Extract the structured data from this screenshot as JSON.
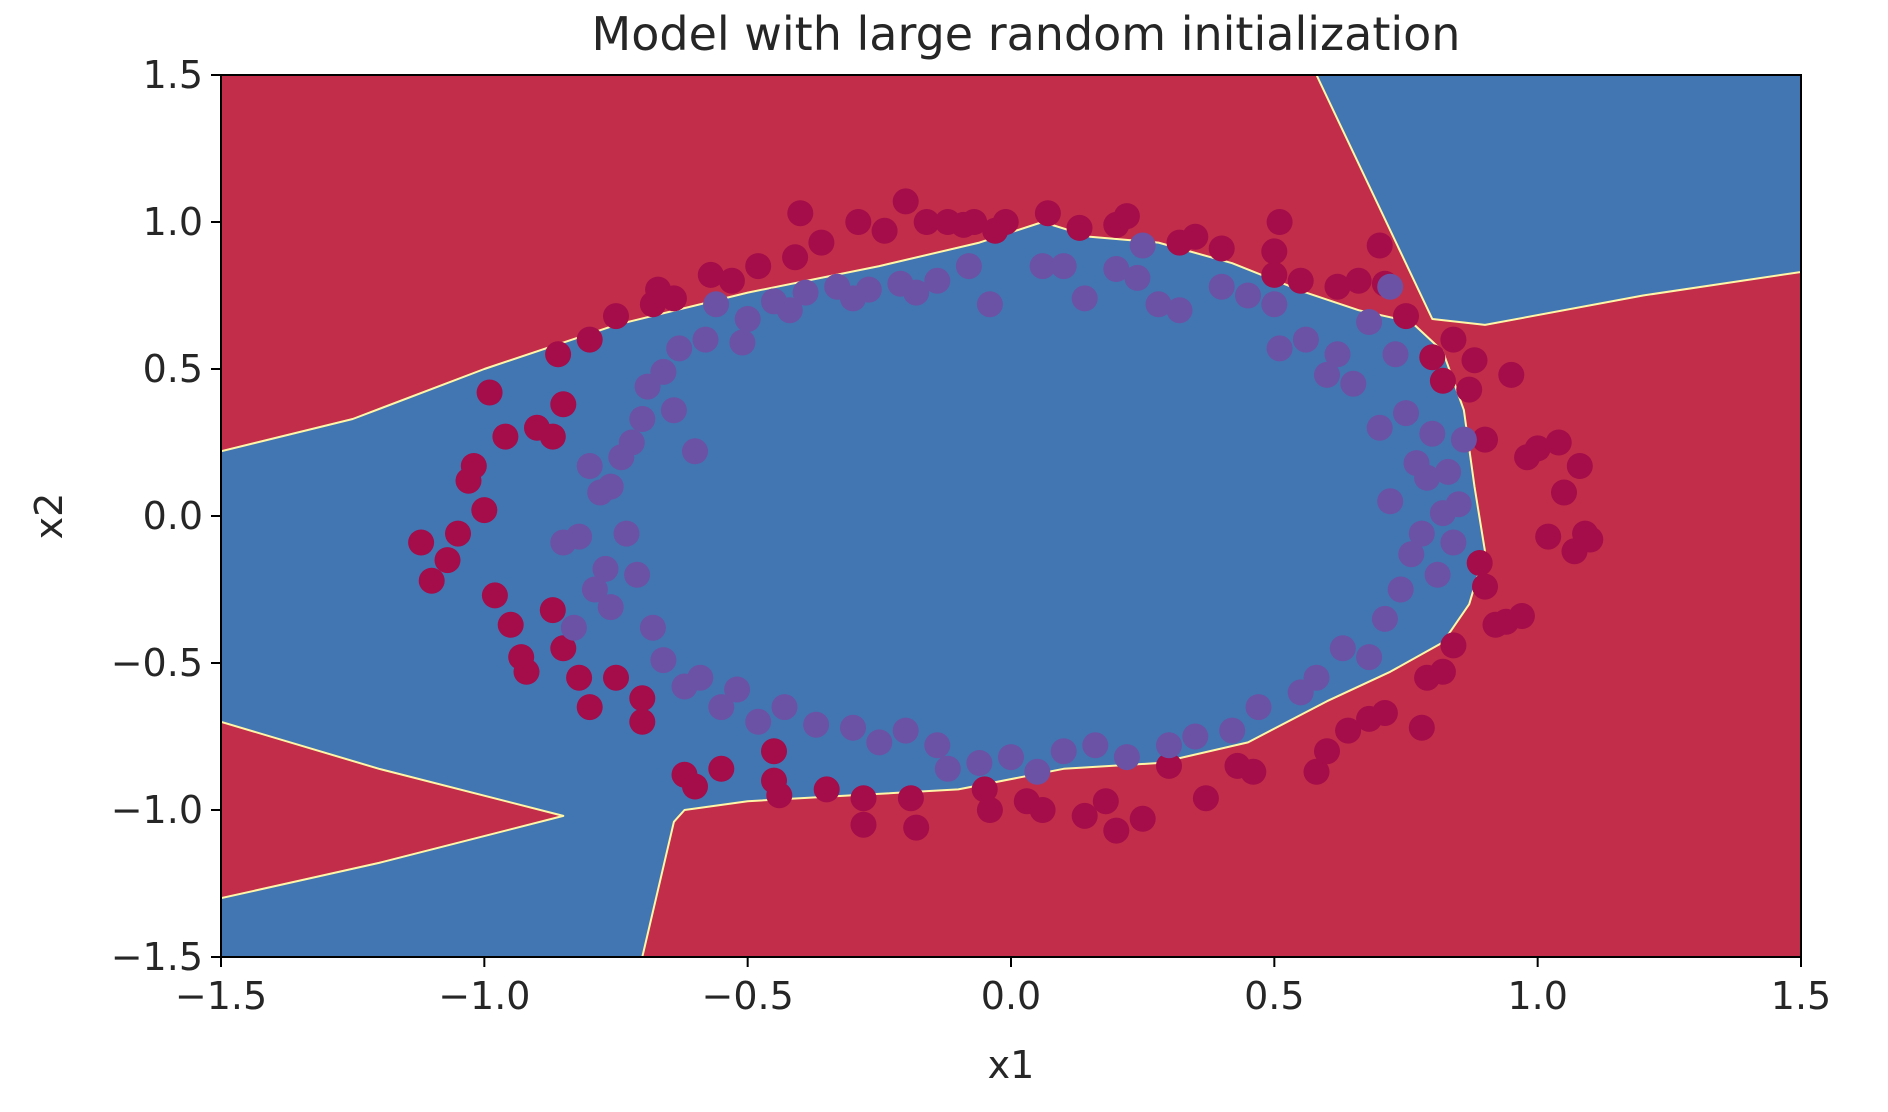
{
  "chart_data": {
    "type": "scatter",
    "title": "Model with large random initialization",
    "xlabel": "x1",
    "ylabel": "x2",
    "xlim": [
      -1.5,
      1.5
    ],
    "ylim": [
      -1.5,
      1.5
    ],
    "xticks": [
      -1.5,
      -1.0,
      -0.5,
      0.0,
      0.5,
      1.0,
      1.5
    ],
    "yticks": [
      -1.5,
      -1.0,
      -0.5,
      0.0,
      0.5,
      1.0,
      1.5
    ],
    "xtick_labels": [
      "−1.5",
      "−1.0",
      "−0.5",
      "0.0",
      "0.5",
      "1.0",
      "1.5"
    ],
    "ytick_labels": [
      "−1.5",
      "−1.0",
      "−0.5",
      "0.0",
      "0.5",
      "1.0",
      "1.5"
    ],
    "grid": false,
    "colors": {
      "region_class_0": "#c22d4a",
      "region_class_1": "#4276b3",
      "boundary": "#fff6a8",
      "points_class_0": "#a40c4a",
      "points_class_1": "#6b52a4"
    },
    "decision_regions": [
      {
        "class": 1,
        "polygon": [
          [
            -1.5,
            0.22
          ],
          [
            -1.25,
            0.33
          ],
          [
            -1.0,
            0.5
          ],
          [
            -0.75,
            0.65
          ],
          [
            -0.5,
            0.76
          ],
          [
            -0.25,
            0.85
          ],
          [
            -0.06,
            0.93
          ],
          [
            0.06,
            1.0
          ],
          [
            0.15,
            0.95
          ],
          [
            0.28,
            0.93
          ],
          [
            0.42,
            0.86
          ],
          [
            0.56,
            0.76
          ],
          [
            0.66,
            0.7
          ],
          [
            0.76,
            0.66
          ],
          [
            0.82,
            0.56
          ],
          [
            0.86,
            0.36
          ],
          [
            0.88,
            0.1
          ],
          [
            0.9,
            -0.12
          ],
          [
            0.87,
            -0.3
          ],
          [
            0.82,
            -0.43
          ],
          [
            0.72,
            -0.53
          ],
          [
            0.6,
            -0.63
          ],
          [
            0.45,
            -0.77
          ],
          [
            0.28,
            -0.84
          ],
          [
            0.1,
            -0.86
          ],
          [
            -0.1,
            -0.93
          ],
          [
            -0.3,
            -0.95
          ],
          [
            -0.5,
            -0.97
          ],
          [
            -0.62,
            -1.0
          ],
          [
            -0.64,
            -1.04
          ],
          [
            -0.7,
            -1.5
          ],
          [
            -1.5,
            -1.5
          ],
          [
            -1.5,
            -1.3
          ],
          [
            -1.2,
            -1.18
          ],
          [
            -0.85,
            -1.02
          ],
          [
            -1.2,
            -0.86
          ],
          [
            -1.5,
            -0.7
          ]
        ]
      },
      {
        "class": 1,
        "polygon": [
          [
            0.58,
            1.5
          ],
          [
            1.5,
            1.5
          ],
          [
            1.5,
            0.83
          ],
          [
            1.2,
            0.75
          ],
          [
            0.9,
            0.65
          ],
          [
            0.8,
            0.67
          ]
        ]
      }
    ],
    "series": [
      {
        "class": 0,
        "points": [
          [
            -1.12,
            -0.09
          ],
          [
            -1.1,
            -0.22
          ],
          [
            -1.07,
            -0.15
          ],
          [
            -1.05,
            -0.06
          ],
          [
            -1.03,
            0.12
          ],
          [
            -1.02,
            0.17
          ],
          [
            -1.0,
            0.02
          ],
          [
            -0.98,
            -0.27
          ],
          [
            -0.99,
            0.42
          ],
          [
            -0.95,
            -0.37
          ],
          [
            -0.96,
            0.27
          ],
          [
            -0.93,
            -0.48
          ],
          [
            -0.92,
            -0.53
          ],
          [
            -0.9,
            0.3
          ],
          [
            -0.87,
            -0.32
          ],
          [
            -0.87,
            0.27
          ],
          [
            -0.85,
            -0.45
          ],
          [
            -0.85,
            0.38
          ],
          [
            -0.86,
            0.55
          ],
          [
            -0.82,
            -0.55
          ],
          [
            -0.8,
            -0.65
          ],
          [
            -0.8,
            0.6
          ],
          [
            -0.75,
            -0.55
          ],
          [
            -0.75,
            0.68
          ],
          [
            -0.7,
            -0.62
          ],
          [
            -0.7,
            -0.7
          ],
          [
            -0.68,
            0.72
          ],
          [
            -0.67,
            0.77
          ],
          [
            -0.64,
            0.74
          ],
          [
            -0.62,
            -0.88
          ],
          [
            -0.6,
            -0.92
          ],
          [
            -0.57,
            0.82
          ],
          [
            -0.55,
            -0.86
          ],
          [
            -0.53,
            0.8
          ],
          [
            -0.48,
            0.85
          ],
          [
            -0.45,
            -0.8
          ],
          [
            -0.45,
            -0.9
          ],
          [
            -0.44,
            -0.95
          ],
          [
            -0.41,
            0.88
          ],
          [
            -0.4,
            1.03
          ],
          [
            -0.36,
            0.93
          ],
          [
            -0.35,
            -0.93
          ],
          [
            -0.29,
            1.0
          ],
          [
            -0.28,
            -0.96
          ],
          [
            -0.28,
            -1.05
          ],
          [
            -0.24,
            0.97
          ],
          [
            -0.2,
            1.07
          ],
          [
            -0.19,
            -0.96
          ],
          [
            -0.18,
            -1.06
          ],
          [
            -0.16,
            1.0
          ],
          [
            -0.12,
            1.0
          ],
          [
            -0.09,
            0.99
          ],
          [
            -0.07,
            1.0
          ],
          [
            -0.05,
            -0.93
          ],
          [
            -0.04,
            -1.0
          ],
          [
            -0.03,
            0.97
          ],
          [
            -0.01,
            1.0
          ],
          [
            0.03,
            -0.97
          ],
          [
            0.06,
            -1.0
          ],
          [
            0.07,
            1.03
          ],
          [
            0.13,
            0.98
          ],
          [
            0.14,
            -1.02
          ],
          [
            0.18,
            -0.97
          ],
          [
            0.2,
            -1.07
          ],
          [
            0.2,
            0.99
          ],
          [
            0.22,
            1.02
          ],
          [
            0.25,
            -1.03
          ],
          [
            0.3,
            -0.85
          ],
          [
            0.32,
            0.93
          ],
          [
            0.35,
            0.95
          ],
          [
            0.37,
            -0.96
          ],
          [
            0.4,
            0.91
          ],
          [
            0.43,
            -0.85
          ],
          [
            0.46,
            -0.87
          ],
          [
            0.5,
            0.9
          ],
          [
            0.5,
            0.82
          ],
          [
            0.51,
            1.0
          ],
          [
            0.55,
            0.8
          ],
          [
            0.58,
            -0.87
          ],
          [
            0.6,
            -0.8
          ],
          [
            0.62,
            0.78
          ],
          [
            0.64,
            -0.73
          ],
          [
            0.66,
            0.8
          ],
          [
            0.68,
            -0.69
          ],
          [
            0.71,
            -0.67
          ],
          [
            0.71,
            0.79
          ],
          [
            0.75,
            0.68
          ],
          [
            0.78,
            -0.72
          ],
          [
            0.79,
            -0.55
          ],
          [
            0.8,
            0.54
          ],
          [
            0.82,
            0.46
          ],
          [
            0.82,
            -0.53
          ],
          [
            0.84,
            -0.44
          ],
          [
            0.87,
            0.43
          ],
          [
            0.88,
            0.53
          ],
          [
            0.89,
            -0.16
          ],
          [
            0.9,
            -0.24
          ],
          [
            0.9,
            0.26
          ],
          [
            0.92,
            -0.37
          ],
          [
            0.94,
            -0.36
          ],
          [
            0.97,
            -0.34
          ],
          [
            0.98,
            0.2
          ],
          [
            1.0,
            0.23
          ],
          [
            1.02,
            -0.07
          ],
          [
            1.04,
            0.25
          ],
          [
            1.05,
            0.08
          ],
          [
            1.07,
            -0.12
          ],
          [
            1.08,
            0.17
          ],
          [
            1.09,
            -0.06
          ],
          [
            1.1,
            -0.08
          ],
          [
            0.95,
            0.48
          ],
          [
            0.84,
            0.6
          ],
          [
            0.7,
            0.92
          ]
        ]
      },
      {
        "class": 1,
        "points": [
          [
            -0.85,
            -0.09
          ],
          [
            -0.83,
            -0.38
          ],
          [
            -0.82,
            -0.07
          ],
          [
            -0.8,
            0.17
          ],
          [
            -0.79,
            -0.25
          ],
          [
            -0.78,
            0.08
          ],
          [
            -0.77,
            -0.18
          ],
          [
            -0.76,
            0.1
          ],
          [
            -0.76,
            -0.31
          ],
          [
            -0.74,
            0.2
          ],
          [
            -0.73,
            -0.06
          ],
          [
            -0.72,
            0.25
          ],
          [
            -0.71,
            -0.2
          ],
          [
            -0.7,
            0.33
          ],
          [
            -0.69,
            0.44
          ],
          [
            -0.68,
            -0.38
          ],
          [
            -0.66,
            0.49
          ],
          [
            -0.66,
            -0.49
          ],
          [
            -0.64,
            0.36
          ],
          [
            -0.63,
            0.57
          ],
          [
            -0.62,
            -0.58
          ],
          [
            -0.6,
            0.22
          ],
          [
            -0.59,
            -0.55
          ],
          [
            -0.58,
            0.6
          ],
          [
            -0.56,
            0.72
          ],
          [
            -0.55,
            -0.65
          ],
          [
            -0.52,
            -0.59
          ],
          [
            -0.51,
            0.59
          ],
          [
            -0.5,
            0.67
          ],
          [
            -0.48,
            -0.7
          ],
          [
            -0.45,
            0.73
          ],
          [
            -0.43,
            -0.65
          ],
          [
            -0.42,
            0.7
          ],
          [
            -0.39,
            0.76
          ],
          [
            -0.37,
            -0.71
          ],
          [
            -0.33,
            0.78
          ],
          [
            -0.3,
            -0.72
          ],
          [
            -0.3,
            0.74
          ],
          [
            -0.27,
            0.77
          ],
          [
            -0.25,
            -0.77
          ],
          [
            -0.21,
            0.79
          ],
          [
            -0.2,
            -0.73
          ],
          [
            -0.18,
            0.76
          ],
          [
            -0.14,
            -0.78
          ],
          [
            -0.14,
            0.8
          ],
          [
            -0.12,
            -0.86
          ],
          [
            -0.08,
            0.85
          ],
          [
            -0.06,
            -0.84
          ],
          [
            -0.04,
            0.72
          ],
          [
            0.0,
            -0.82
          ],
          [
            0.05,
            -0.87
          ],
          [
            0.06,
            0.85
          ],
          [
            0.1,
            -0.8
          ],
          [
            0.1,
            0.85
          ],
          [
            0.14,
            0.74
          ],
          [
            0.16,
            -0.78
          ],
          [
            0.2,
            0.84
          ],
          [
            0.22,
            -0.82
          ],
          [
            0.24,
            0.81
          ],
          [
            0.25,
            0.92
          ],
          [
            0.28,
            0.72
          ],
          [
            0.3,
            -0.78
          ],
          [
            0.32,
            0.7
          ],
          [
            0.35,
            -0.75
          ],
          [
            0.4,
            0.78
          ],
          [
            0.42,
            -0.73
          ],
          [
            0.45,
            0.75
          ],
          [
            0.47,
            -0.65
          ],
          [
            0.5,
            0.72
          ],
          [
            0.51,
            0.57
          ],
          [
            0.55,
            -0.6
          ],
          [
            0.56,
            0.6
          ],
          [
            0.58,
            -0.55
          ],
          [
            0.6,
            0.48
          ],
          [
            0.62,
            0.55
          ],
          [
            0.63,
            -0.45
          ],
          [
            0.65,
            0.45
          ],
          [
            0.68,
            -0.48
          ],
          [
            0.7,
            0.3
          ],
          [
            0.71,
            -0.35
          ],
          [
            0.72,
            0.05
          ],
          [
            0.73,
            0.55
          ],
          [
            0.74,
            -0.25
          ],
          [
            0.75,
            0.35
          ],
          [
            0.76,
            -0.13
          ],
          [
            0.77,
            0.18
          ],
          [
            0.78,
            -0.06
          ],
          [
            0.79,
            0.13
          ],
          [
            0.8,
            0.28
          ],
          [
            0.81,
            -0.2
          ],
          [
            0.82,
            0.01
          ],
          [
            0.83,
            0.15
          ],
          [
            0.84,
            -0.09
          ],
          [
            0.85,
            0.04
          ],
          [
            0.86,
            0.26
          ],
          [
            0.72,
            0.78
          ],
          [
            0.68,
            0.66
          ]
        ]
      }
    ]
  }
}
